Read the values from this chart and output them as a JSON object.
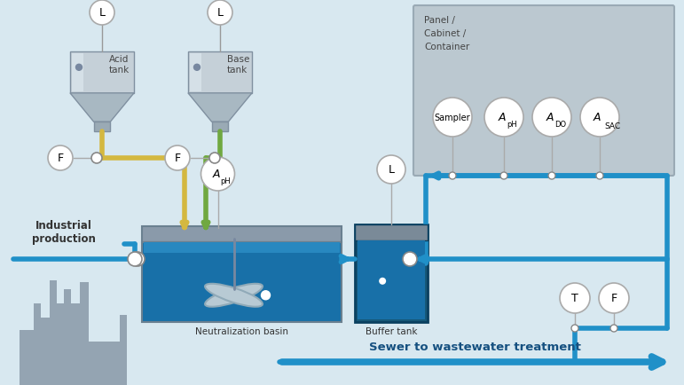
{
  "bg_color": "#d8e8f0",
  "pipe_blue": "#2090c8",
  "pipe_yellow": "#d4b840",
  "pipe_green": "#70a840",
  "panel_gray": "#b0bec8",
  "basin_blue": "#1e78b0",
  "factory_color": "#8898a8",
  "title_bottom": "Sewer to wastewater treatment",
  "label_acid": "Acid\ntank",
  "label_base": "Base\ntank",
  "label_panel": "Panel /\nCabinet /\nContainer",
  "label_industrial": "Industrial\nproduction",
  "label_neutralization": "Neutralization basin",
  "label_buffer": "Buffer tank"
}
